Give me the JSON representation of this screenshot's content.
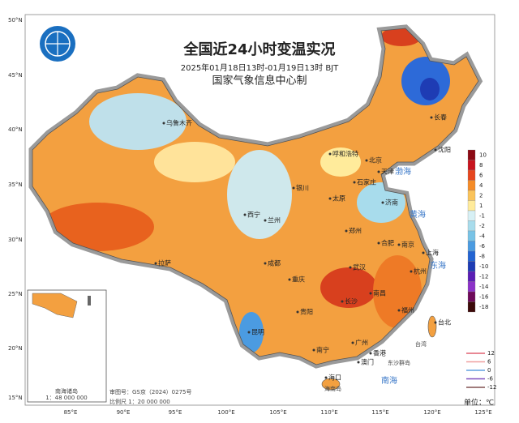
{
  "header": {
    "title": "全国近24小时变温实况",
    "subtitle": "2025年01月18日13时-01月19日13时 BJT",
    "org": "国家气象信息中心制"
  },
  "latitude_labels": [
    "50°N",
    "45°N",
    "40°N",
    "35°N",
    "30°N",
    "25°N",
    "20°N",
    "15°N"
  ],
  "longitude_labels": [
    "85°E",
    "90°E",
    "95°E",
    "100°E",
    "105°E",
    "110°E",
    "115°E",
    "120°E",
    "125°E"
  ],
  "cities": [
    "乌鲁木齐",
    "呼和浩特",
    "北京",
    "天津",
    "石家庄",
    "太原",
    "银川",
    "兰州",
    "西宁",
    "济南",
    "郑州",
    "合肥",
    "南京",
    "上海",
    "杭州",
    "武汉",
    "长沙",
    "南昌",
    "福州",
    "台北",
    "成都",
    "重庆",
    "贵阳",
    "昆明",
    "南宁",
    "广州",
    "香港",
    "澳门",
    "海口",
    "拉萨",
    "长春",
    "沈阳"
  ],
  "seas": [
    "渤海",
    "黄海",
    "东海",
    "南海",
    "台湾",
    "东沙群岛",
    "海南岛"
  ],
  "legend": {
    "items": [
      {
        "label": 10,
        "color": "#8c0a14"
      },
      {
        "label": 8,
        "color": "#c8141e"
      },
      {
        "label": 6,
        "color": "#e6461e"
      },
      {
        "label": 4,
        "color": "#f58c28"
      },
      {
        "label": 2,
        "color": "#fac35a"
      },
      {
        "label": 1,
        "color": "#ffeb9b"
      },
      {
        "label": -1,
        "color": "#d7f0f5"
      },
      {
        "label": -2,
        "color": "#a8dcec"
      },
      {
        "label": -4,
        "color": "#78c3e6"
      },
      {
        "label": -6,
        "color": "#4b9be1"
      },
      {
        "label": -8,
        "color": "#2364d2"
      },
      {
        "label": -10,
        "color": "#1e3cb4"
      },
      {
        "label": -12,
        "color": "#5a1eb4"
      },
      {
        "label": -14,
        "color": "#8c32c8"
      },
      {
        "label": -16,
        "color": "#6e0a5a"
      },
      {
        "label": -18,
        "color": "#3c0a0a"
      }
    ],
    "unit": "单位：℃"
  },
  "contour_legend": [
    {
      "label": 12,
      "color": "#e06070"
    },
    {
      "label": 6,
      "color": "#f0a0a0"
    },
    {
      "label": 0,
      "color": "#60a0e0"
    },
    {
      "label": -6,
      "color": "#8050c0"
    },
    {
      "label": -12,
      "color": "#805050"
    }
  ],
  "footer": {
    "review_number": "审图号：GS京（2024）0275号",
    "scale": "比例尺 1：20 000 000"
  },
  "inset": {
    "label": "南海诸岛",
    "scale": "1：48 000 000"
  }
}
